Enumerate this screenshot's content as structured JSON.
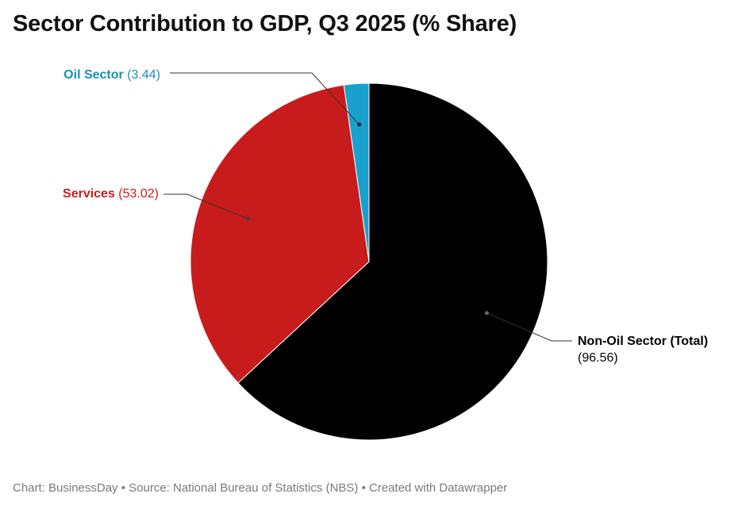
{
  "title": "Sector Contribution to GDP, Q3 2025 (% Share)",
  "footer": "Chart: BusinessDay • Source: National Bureau of Statistics (NBS) • Created with Datawrapper",
  "chart_data": {
    "type": "pie",
    "title": "Sector Contribution to GDP, Q3 2025 (% Share)",
    "slices": [
      {
        "label": "Non-Oil Sector (Total)",
        "value": 96.56,
        "value_text": "(96.56)",
        "color": "#000000",
        "label_color": "#000000",
        "label_side": "right"
      },
      {
        "label": "Services",
        "value": 53.02,
        "value_text": "(53.02)",
        "color": "#c81c1c",
        "label_color": "#c81c1c",
        "label_side": "left"
      },
      {
        "label": "Oil Sector",
        "value": 3.44,
        "value_text": "(3.44)",
        "color": "#1aa0cc",
        "label_color": "#1a8fb8",
        "label_side": "left"
      }
    ],
    "start_angle_deg": 0,
    "direction": "clockwise",
    "legend": "none",
    "grid": false
  }
}
